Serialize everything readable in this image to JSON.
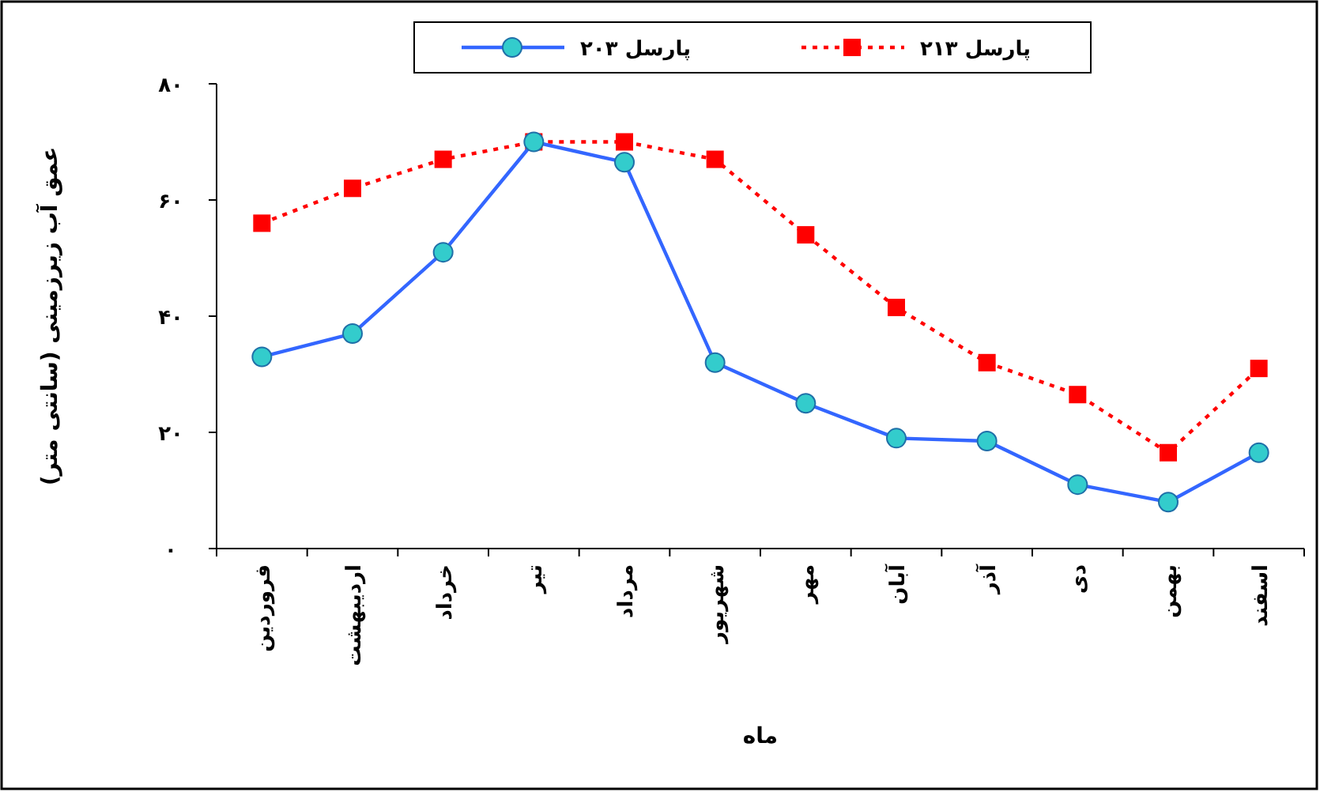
{
  "chart_data": {
    "type": "line",
    "xlabel": "ماه",
    "ylabel": "عمق آب زیرزمینی (سانتی متر)",
    "categories": [
      "فروردین",
      "اردیبهشت",
      "خرداد",
      "تیر",
      "مرداد",
      "شهریور",
      "مهر",
      "آبان",
      "آذر",
      "دی",
      "بهمن",
      "اسفند"
    ],
    "ylim": [
      0,
      80
    ],
    "yticks": [
      {
        "value": 0,
        "label": "۰"
      },
      {
        "value": 20,
        "label": "۲۰"
      },
      {
        "value": 40,
        "label": "۴۰"
      },
      {
        "value": 60,
        "label": "۶۰"
      },
      {
        "value": 80,
        "label": "۸۰"
      }
    ],
    "legend": "top",
    "grid": false,
    "series": [
      {
        "name": "پارسل ۲۰۳",
        "color": "#3366ff",
        "marker": "circle",
        "line_style": "solid",
        "values": [
          33,
          37,
          51,
          70,
          66.5,
          32,
          25,
          19,
          18.5,
          11,
          8,
          16.5
        ]
      },
      {
        "name": "پارسل ۲۱۳",
        "color": "#ff0000",
        "marker": "square",
        "line_style": "dotted",
        "values": [
          56,
          62,
          67,
          70,
          70,
          67,
          54,
          41.5,
          32,
          26.5,
          16.5,
          31
        ]
      }
    ]
  }
}
